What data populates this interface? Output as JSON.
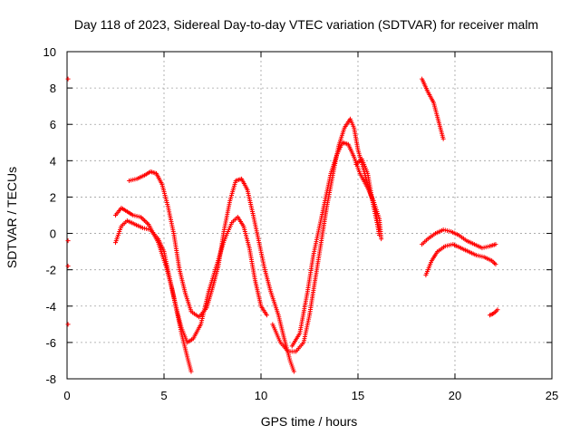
{
  "chart_data": {
    "type": "scatter",
    "title": "Day 118 of 2023, Sidereal Day-to-day VTEC variation (SDTVAR) for receiver malm",
    "xlabel": "GPS time / hours",
    "ylabel": "SDTVAR / TECUs",
    "xlim": [
      0,
      25
    ],
    "ylim": [
      -8,
      10
    ],
    "x_ticks": [
      0,
      5,
      10,
      15,
      20,
      25
    ],
    "y_ticks": [
      -8,
      -6,
      -4,
      -2,
      0,
      2,
      4,
      6,
      8,
      10
    ],
    "grid": true,
    "marker": "+",
    "color": "#ff0000",
    "series": [
      {
        "name": "seg-start-dots",
        "points": [
          [
            0.05,
            8.5
          ],
          [
            0.05,
            -0.4
          ],
          [
            0.05,
            -1.8
          ],
          [
            0.05,
            -5.0
          ]
        ]
      },
      {
        "name": "pass-A",
        "points": [
          [
            2.5,
            1.0
          ],
          [
            2.8,
            1.4
          ],
          [
            3.1,
            1.2
          ],
          [
            3.4,
            1.0
          ],
          [
            3.8,
            0.9
          ],
          [
            4.2,
            0.5
          ],
          [
            4.7,
            -0.5
          ],
          [
            5.1,
            -1.8
          ],
          [
            5.4,
            -3.0
          ],
          [
            5.7,
            -4.4
          ],
          [
            5.9,
            -5.2
          ],
          [
            6.2,
            -6.0
          ],
          [
            6.5,
            -5.8
          ],
          [
            6.9,
            -5.0
          ],
          [
            7.3,
            -3.2
          ],
          [
            7.7,
            -1.8
          ],
          [
            8.1,
            -0.4
          ],
          [
            8.5,
            0.6
          ],
          [
            8.8,
            0.9
          ],
          [
            9.1,
            0.4
          ],
          [
            9.4,
            -0.8
          ],
          [
            9.7,
            -2.6
          ],
          [
            10.0,
            -4.0
          ],
          [
            10.3,
            -4.5
          ]
        ]
      },
      {
        "name": "pass-B",
        "points": [
          [
            2.5,
            -0.5
          ],
          [
            2.8,
            0.4
          ],
          [
            3.1,
            0.7
          ],
          [
            3.5,
            0.5
          ],
          [
            3.9,
            0.3
          ],
          [
            4.3,
            0.2
          ],
          [
            4.7,
            -0.3
          ],
          [
            5.0,
            -1.0
          ],
          [
            5.3,
            -2.5
          ],
          [
            5.6,
            -4.0
          ],
          [
            5.9,
            -5.5
          ],
          [
            6.2,
            -6.8
          ],
          [
            6.4,
            -7.6
          ]
        ]
      },
      {
        "name": "pass-C",
        "points": [
          [
            3.2,
            2.9
          ],
          [
            3.6,
            3.0
          ],
          [
            4.0,
            3.2
          ],
          [
            4.3,
            3.4
          ],
          [
            4.6,
            3.3
          ],
          [
            4.9,
            2.7
          ],
          [
            5.2,
            1.5
          ],
          [
            5.5,
            0.0
          ],
          [
            5.8,
            -2.0
          ],
          [
            6.1,
            -3.3
          ],
          [
            6.4,
            -4.3
          ],
          [
            6.8,
            -4.6
          ],
          [
            7.2,
            -4.1
          ],
          [
            7.5,
            -3.0
          ],
          [
            7.8,
            -1.8
          ],
          [
            8.1,
            0.2
          ],
          [
            8.4,
            1.8
          ],
          [
            8.7,
            2.9
          ],
          [
            9.0,
            3.0
          ],
          [
            9.3,
            2.4
          ],
          [
            9.6,
            1.0
          ],
          [
            9.9,
            -0.5
          ],
          [
            10.2,
            -2.0
          ],
          [
            10.5,
            -3.2
          ],
          [
            10.9,
            -4.5
          ],
          [
            11.2,
            -5.8
          ],
          [
            11.5,
            -7.0
          ],
          [
            11.7,
            -7.6
          ]
        ]
      },
      {
        "name": "pass-D",
        "points": [
          [
            10.6,
            -5.0
          ],
          [
            11.0,
            -6.0
          ],
          [
            11.4,
            -6.5
          ],
          [
            11.8,
            -6.5
          ],
          [
            12.2,
            -6.0
          ],
          [
            12.5,
            -4.5
          ],
          [
            12.8,
            -2.5
          ],
          [
            13.1,
            -0.5
          ],
          [
            13.4,
            1.5
          ],
          [
            13.7,
            3.2
          ],
          [
            14.0,
            4.8
          ],
          [
            14.3,
            5.8
          ],
          [
            14.6,
            6.3
          ],
          [
            14.8,
            5.8
          ],
          [
            15.0,
            4.6
          ],
          [
            15.3,
            3.5
          ],
          [
            15.6,
            2.3
          ],
          [
            15.9,
            1.3
          ],
          [
            16.1,
            0.2
          ]
        ]
      },
      {
        "name": "pass-E",
        "points": [
          [
            11.6,
            -6.2
          ],
          [
            12.0,
            -5.5
          ],
          [
            12.4,
            -3.2
          ],
          [
            12.7,
            -1.2
          ],
          [
            13.0,
            0.3
          ],
          [
            13.3,
            1.8
          ],
          [
            13.6,
            3.3
          ],
          [
            13.9,
            4.3
          ],
          [
            14.2,
            5.0
          ],
          [
            14.5,
            4.9
          ],
          [
            14.8,
            4.2
          ],
          [
            15.1,
            3.3
          ],
          [
            15.5,
            2.5
          ],
          [
            15.8,
            1.8
          ],
          [
            16.1,
            0.8
          ],
          [
            16.2,
            -0.3
          ]
        ]
      },
      {
        "name": "pass-F",
        "points": [
          [
            14.9,
            3.8
          ],
          [
            15.2,
            4.1
          ],
          [
            15.5,
            3.3
          ],
          [
            15.8,
            1.5
          ],
          [
            16.0,
            0.5
          ],
          [
            16.1,
            -0.1
          ]
        ]
      },
      {
        "name": "pass-G",
        "points": [
          [
            18.3,
            8.5
          ],
          [
            18.6,
            7.8
          ],
          [
            18.9,
            7.2
          ],
          [
            19.2,
            6.0
          ],
          [
            19.4,
            5.2
          ]
        ]
      },
      {
        "name": "pass-H",
        "points": [
          [
            18.3,
            -0.6
          ],
          [
            18.6,
            -0.3
          ],
          [
            19.0,
            0.0
          ],
          [
            19.4,
            0.2
          ],
          [
            19.8,
            0.1
          ],
          [
            20.2,
            -0.1
          ],
          [
            20.6,
            -0.4
          ],
          [
            21.0,
            -0.6
          ],
          [
            21.4,
            -0.8
          ],
          [
            21.8,
            -0.7
          ],
          [
            22.1,
            -0.6
          ]
        ]
      },
      {
        "name": "pass-I",
        "points": [
          [
            18.5,
            -2.3
          ],
          [
            18.8,
            -1.5
          ],
          [
            19.1,
            -1.0
          ],
          [
            19.5,
            -0.7
          ],
          [
            19.9,
            -0.6
          ],
          [
            20.3,
            -0.8
          ],
          [
            20.7,
            -1.0
          ],
          [
            21.1,
            -1.2
          ],
          [
            21.5,
            -1.3
          ],
          [
            21.9,
            -1.5
          ],
          [
            22.1,
            -1.7
          ]
        ]
      },
      {
        "name": "pass-J",
        "points": [
          [
            21.8,
            -4.5
          ],
          [
            22.0,
            -4.4
          ],
          [
            22.2,
            -4.2
          ]
        ]
      }
    ]
  }
}
